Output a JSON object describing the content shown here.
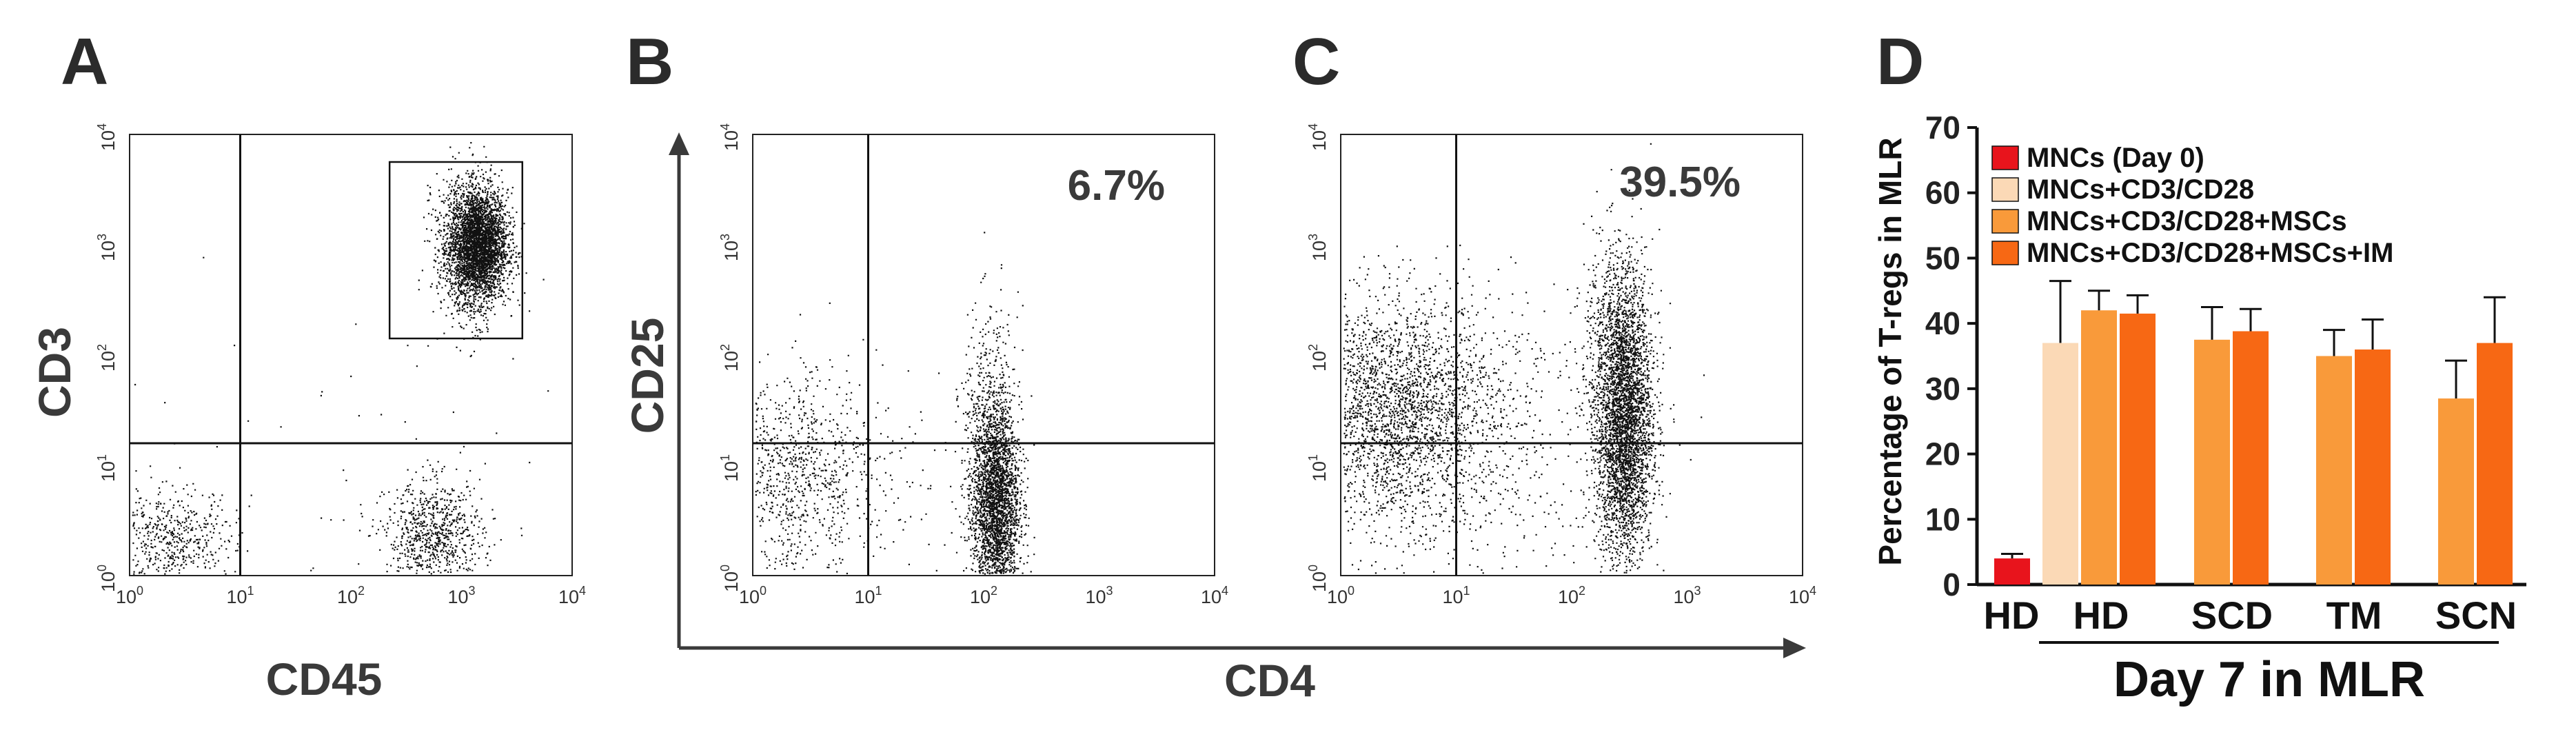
{
  "panels": {
    "A": {
      "letter": "A",
      "xlabel": "CD45",
      "ylabel": "CD3",
      "x_ticks": [
        "10^0",
        "10^1",
        "10^2",
        "10^3",
        "10^4"
      ],
      "y_ticks": [
        "10^0",
        "10^1",
        "10^2",
        "10^3",
        "10^4"
      ],
      "quadrant_lines": {
        "x": 1.0,
        "y": 1.2
      },
      "gate": {
        "x": [
          2.35,
          3.55
        ],
        "y": [
          2.15,
          3.75
        ]
      },
      "populations": [
        {
          "cx": 3.15,
          "cy": 3.0,
          "sx": 0.13,
          "sy": 0.25,
          "n": 3200
        },
        {
          "cx": 3.05,
          "cy": 3.0,
          "sx": 0.16,
          "sy": 0.34,
          "n": 700
        },
        {
          "cx": 0.35,
          "cy": 0.3,
          "sx": 0.3,
          "sy": 0.25,
          "n": 600
        },
        {
          "cx": 2.75,
          "cy": 0.35,
          "sx": 0.22,
          "sy": 0.25,
          "n": 800
        },
        {
          "cx": 2.0,
          "cy": 1.0,
          "sx": 1.2,
          "sy": 0.8,
          "n": 60
        }
      ]
    },
    "B": {
      "letter": "B",
      "ylabel": "CD25",
      "percent": "6.7%",
      "x_ticks": [
        "10^0",
        "10^1",
        "10^2",
        "10^3",
        "10^4"
      ],
      "y_ticks": [
        "10^0",
        "10^1",
        "10^2",
        "10^3",
        "10^4"
      ],
      "quadrant_lines": {
        "x": 1.0,
        "y": 1.2
      },
      "populations": [
        {
          "cx": 2.1,
          "cy": 0.65,
          "sx": 0.1,
          "sy": 0.45,
          "n": 2600
        },
        {
          "cx": 2.05,
          "cy": 1.3,
          "sx": 0.12,
          "sy": 0.55,
          "n": 500
        },
        {
          "cx": 0.3,
          "cy": 0.9,
          "sx": 0.35,
          "sy": 0.45,
          "n": 900
        },
        {
          "cx": 1.0,
          "cy": 0.8,
          "sx": 0.6,
          "sy": 0.6,
          "n": 200
        }
      ]
    },
    "C": {
      "letter": "C",
      "percent": "39.5%",
      "x_ticks": [
        "10^0",
        "10^1",
        "10^2",
        "10^3",
        "10^4"
      ],
      "y_ticks": [
        "10^0",
        "10^1",
        "10^2",
        "10^3",
        "10^4"
      ],
      "quadrant_lines": {
        "x": 1.0,
        "y": 1.2
      },
      "populations": [
        {
          "cx": 2.45,
          "cy": 1.35,
          "sx": 0.12,
          "sy": 0.6,
          "n": 3400
        },
        {
          "cx": 2.4,
          "cy": 2.2,
          "sx": 0.15,
          "sy": 0.45,
          "n": 600
        },
        {
          "cx": 0.45,
          "cy": 1.5,
          "sx": 0.45,
          "sy": 0.5,
          "n": 2600
        },
        {
          "cx": 1.2,
          "cy": 1.2,
          "sx": 0.7,
          "sy": 0.7,
          "n": 600
        }
      ]
    },
    "shared": {
      "xlabel": "CD4"
    }
  },
  "chart_data": {
    "type": "bar",
    "letter": "D",
    "ylabel": "Percentage of T-regs in MLR",
    "ylim": [
      0,
      70
    ],
    "yticks": [
      0,
      10,
      20,
      30,
      40,
      50,
      60,
      70
    ],
    "xtitle": "Day 7 in MLR",
    "groups": [
      "HD",
      "HD",
      "SCD",
      "TM",
      "SCN"
    ],
    "legend": [
      {
        "name": "MNCs (Day 0)",
        "color": "#e8141c"
      },
      {
        "name": "MNCs+CD3/CD28",
        "color": "#fbd9b6"
      },
      {
        "name": "MNCs+CD3/CD28+MSCs",
        "color": "#f99a3a"
      },
      {
        "name": "MNCs+CD3/CD28+MSCs+IM",
        "color": "#f76814"
      }
    ],
    "bars": [
      {
        "group": 0,
        "series": 0,
        "value": 4.0,
        "error": 0.7
      },
      {
        "group": 1,
        "series": 1,
        "value": 37.0,
        "error": 9.5
      },
      {
        "group": 1,
        "series": 2,
        "value": 42.0,
        "error": 3.0
      },
      {
        "group": 1,
        "series": 3,
        "value": 41.5,
        "error": 2.8
      },
      {
        "group": 2,
        "series": 2,
        "value": 37.5,
        "error": 5.0
      },
      {
        "group": 2,
        "series": 3,
        "value": 38.8,
        "error": 3.4
      },
      {
        "group": 3,
        "series": 2,
        "value": 35.0,
        "error": 4.0
      },
      {
        "group": 3,
        "series": 3,
        "value": 36.0,
        "error": 4.6
      },
      {
        "group": 4,
        "series": 2,
        "value": 28.5,
        "error": 5.8
      },
      {
        "group": 4,
        "series": 3,
        "value": 37.0,
        "error": 7.0
      }
    ]
  }
}
